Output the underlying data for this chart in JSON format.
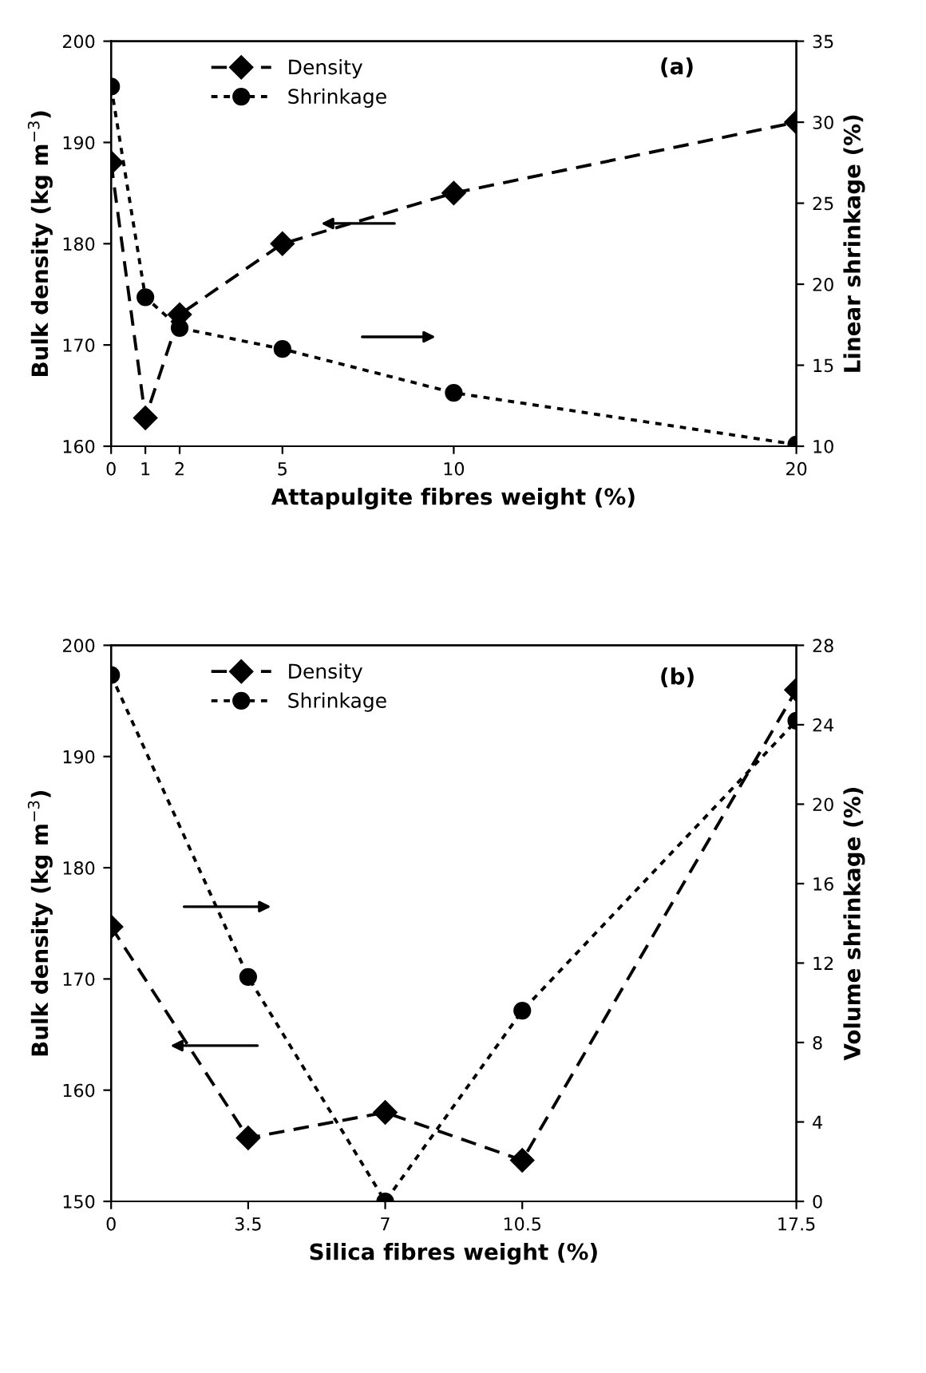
{
  "chart_data": [
    {
      "type": "line",
      "xlabel": "Attapulgite fibres weight (%)",
      "ylabel": "Bulk density (kg m$^{−3}$)",
      "y2label": "Linear shrinkage (%)",
      "x": [
        0,
        1,
        2,
        5,
        10,
        20
      ],
      "xlim": [
        0,
        20
      ],
      "xticks": [
        0,
        1,
        2,
        5,
        10,
        20
      ],
      "ylim": [
        160,
        200
      ],
      "yticks": [
        160,
        170,
        180,
        190,
        200
      ],
      "y2lim": [
        10,
        35
      ],
      "y2ticks": [
        10,
        15,
        20,
        25,
        30,
        35
      ],
      "series": [
        {
          "name": "Density",
          "color": "#000000",
          "marker": "diamond",
          "line_style": "dashed",
          "values": [
            188,
            162.8,
            173,
            180,
            185,
            192
          ]
        },
        {
          "name": "Shrinkage",
          "color": "#000000",
          "marker": "circle",
          "line_style": "dotted",
          "axis": "y2",
          "values": [
            32.2,
            19.2,
            17.3,
            16,
            13.3,
            10.1
          ]
        }
      ],
      "annotations": [
        "(a)"
      ],
      "legend": "top left",
      "grid": false
    },
    {
      "type": "line",
      "xlabel": "Silica fibres weight (%)",
      "ylabel": "Bulk density (kg m$^{−3}$)",
      "y2label": "Volume shrinkage (%)",
      "x": [
        0,
        3.5,
        7,
        10.5,
        17.5
      ],
      "xlim": [
        0,
        17.5
      ],
      "xticks": [
        0,
        3.5,
        7,
        10.5,
        17.5
      ],
      "ylim": [
        150,
        200
      ],
      "yticks": [
        150,
        160,
        170,
        180,
        190,
        200
      ],
      "y2lim": [
        0,
        28
      ],
      "y2ticks": [
        0,
        4,
        8,
        12,
        16,
        20,
        24,
        28
      ],
      "series": [
        {
          "name": "Density",
          "color": "#000000",
          "marker": "diamond",
          "line_style": "dashed",
          "values": [
            174.7,
            155.7,
            158,
            153.7,
            196
          ]
        },
        {
          "name": "Shrinkage",
          "color": "#000000",
          "marker": "circle",
          "line_style": "dotted",
          "axis": "y2",
          "values": [
            26.5,
            11.3,
            0,
            9.6,
            24.2
          ]
        }
      ],
      "annotations": [
        "(b)"
      ],
      "legend": "top left",
      "grid": false
    }
  ]
}
